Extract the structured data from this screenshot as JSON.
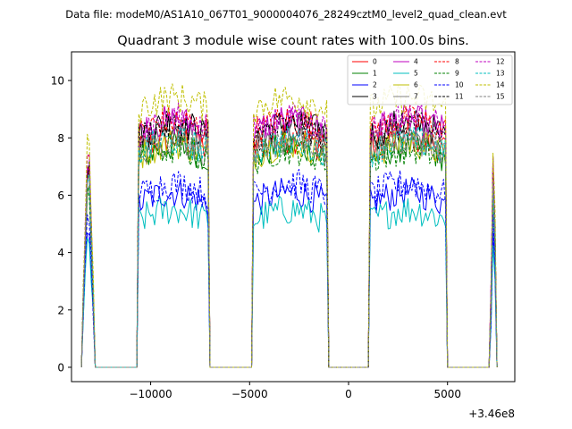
{
  "chart_data": {
    "type": "line",
    "suptitle": "Data file: modeM0/AS1A10_067T01_9000004076_28249cztM0_level2_quad_clean.evt",
    "title": "Quadrant 3 module wise count rates with 100.0s bins.",
    "xlabel": "",
    "ylabel": "",
    "x_offset_label": "+3.46e8",
    "xlim": [
      -14000,
      8400
    ],
    "ylim": [
      -0.5,
      11.0
    ],
    "x_ticks": [
      -10000,
      -5000,
      0,
      5000
    ],
    "x_tick_labels": [
      "−10000",
      "−5000",
      "0",
      "5000"
    ],
    "y_ticks": [
      0,
      2,
      4,
      6,
      8,
      10
    ],
    "y_tick_labels": [
      "0",
      "2",
      "4",
      "6",
      "8",
      "10"
    ],
    "grid": false,
    "legend_position": "top-right",
    "segments": [
      {
        "x_start": -13400,
        "x_end": -12900,
        "shape": "short"
      },
      {
        "x_start": -10600,
        "x_end": -7100
      },
      {
        "x_start": -4800,
        "x_end": -1100
      },
      {
        "x_start": 1100,
        "x_end": 4950
      },
      {
        "x_start": 7200,
        "x_end": 7450,
        "shape": "short"
      }
    ],
    "series": [
      {
        "name": "0",
        "color": "#ff0000",
        "dash": "solid",
        "level": 7.6
      },
      {
        "name": "1",
        "color": "#008000",
        "dash": "solid",
        "level": 7.3
      },
      {
        "name": "2",
        "color": "#0000ff",
        "dash": "solid",
        "level": 5.7
      },
      {
        "name": "3",
        "color": "#000000",
        "dash": "solid",
        "level": 8.1
      },
      {
        "name": "4",
        "color": "#bf00bf",
        "dash": "solid",
        "level": 8.2
      },
      {
        "name": "5",
        "color": "#00bfbf",
        "dash": "solid",
        "level": 5.1
      },
      {
        "name": "6",
        "color": "#bfbf00",
        "dash": "solid",
        "level": 7.4
      },
      {
        "name": "7",
        "color": "#808080",
        "dash": "solid",
        "level": 7.5
      },
      {
        "name": "8",
        "color": "#ff0000",
        "dash": "dashed",
        "level": 8.2
      },
      {
        "name": "9",
        "color": "#008000",
        "dash": "dashed",
        "level": 7.2
      },
      {
        "name": "10",
        "color": "#0000ff",
        "dash": "dashed",
        "level": 6.0
      },
      {
        "name": "11",
        "color": "#000000",
        "dash": "dashed",
        "level": 8.0
      },
      {
        "name": "12",
        "color": "#bf00bf",
        "dash": "dashed",
        "level": 8.3
      },
      {
        "name": "13",
        "color": "#00bfbf",
        "dash": "dashed",
        "level": 7.5
      },
      {
        "name": "14",
        "color": "#bfbf00",
        "dash": "dashed",
        "level": 9.0
      },
      {
        "name": "15",
        "color": "#808080",
        "dash": "dashed",
        "level": 7.6
      }
    ]
  }
}
